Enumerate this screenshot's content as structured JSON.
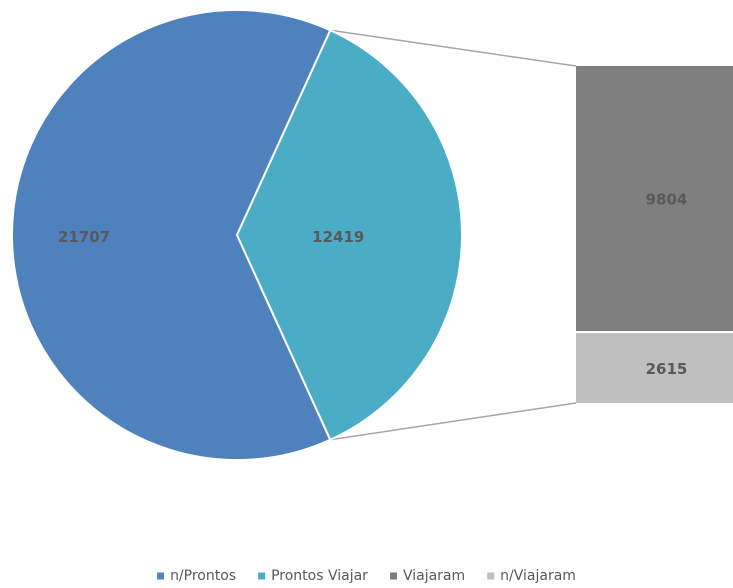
{
  "chart_data": {
    "type": "bar-of-pie",
    "pie": {
      "slices": [
        {
          "name": "n/Prontos",
          "value": 21707,
          "color": "#4f81bd"
        },
        {
          "name": "Prontos Viajar",
          "value": 12419,
          "color": "#4bacc6"
        }
      ]
    },
    "bar": {
      "segments": [
        {
          "name": "Viajaram",
          "value": 9804,
          "color": "#7f7f7f"
        },
        {
          "name": "n/Viajaram",
          "value": 2615,
          "color": "#bfbfbf"
        }
      ]
    },
    "legend": {
      "position": "bottom",
      "entries": [
        {
          "name": "n/Prontos",
          "color": "#4f81bd"
        },
        {
          "name": "Prontos Viajar",
          "color": "#4bacc6"
        },
        {
          "name": "Viajaram",
          "color": "#7f7f7f"
        },
        {
          "name": "n/Viajaram",
          "color": "#bfbfbf"
        }
      ]
    }
  }
}
